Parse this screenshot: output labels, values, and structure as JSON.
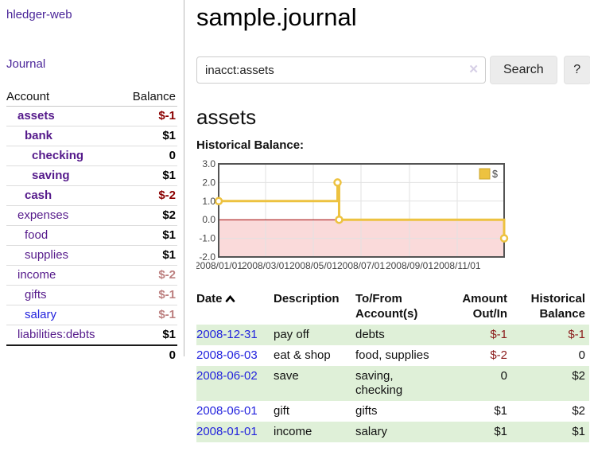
{
  "colors": {
    "accent_purple": "#4a2599",
    "account_link_purple": "#551a8b",
    "link_blue": "#2222dd",
    "negative_strong_red": "#8b0000",
    "negative_table_red": "#8b1a1a",
    "negative_soft_rose": "#bc7f7f",
    "row_stripe_green": "#dff0d8",
    "chart_series_yellow": "#edc240",
    "chart_negative_fill_pink": "#fadada",
    "chart_zero_line_red": "#a00000"
  },
  "sidebar": {
    "brand": "hledger-web",
    "nav": {
      "journal": "Journal"
    },
    "table_headers": [
      "Account",
      "Balance"
    ],
    "accounts": [
      {
        "name": "assets",
        "depth": 1,
        "in_query": true,
        "name_color": "purple",
        "balance": "$-1",
        "balance_color": "strong-neg"
      },
      {
        "name": "bank",
        "depth": 2,
        "in_query": true,
        "name_color": "purple",
        "balance": "$1",
        "balance_color": "normal"
      },
      {
        "name": "checking",
        "depth": 3,
        "in_query": true,
        "name_color": "purple",
        "balance": "0",
        "balance_color": "normal"
      },
      {
        "name": "saving",
        "depth": 3,
        "in_query": true,
        "name_color": "purple",
        "balance": "$1",
        "balance_color": "normal"
      },
      {
        "name": "cash",
        "depth": 2,
        "in_query": true,
        "name_color": "purple",
        "balance": "$-2",
        "balance_color": "strong-neg"
      },
      {
        "name": "expenses",
        "depth": 1,
        "in_query": false,
        "name_color": "purple",
        "balance": "$2",
        "balance_color": "normal"
      },
      {
        "name": "food",
        "depth": 2,
        "in_query": false,
        "name_color": "purple",
        "balance": "$1",
        "balance_color": "normal"
      },
      {
        "name": "supplies",
        "depth": 2,
        "in_query": false,
        "name_color": "purple",
        "balance": "$1",
        "balance_color": "normal"
      },
      {
        "name": "income",
        "depth": 1,
        "in_query": false,
        "name_color": "purple",
        "balance": "$-2",
        "balance_color": "soft-neg"
      },
      {
        "name": "gifts",
        "depth": 2,
        "in_query": false,
        "name_color": "purple",
        "balance": "$-1",
        "balance_color": "soft-neg"
      },
      {
        "name": "salary",
        "depth": 2,
        "in_query": false,
        "name_color": "blue",
        "balance": "$-1",
        "balance_color": "soft-neg"
      },
      {
        "name": "liabilities:debts",
        "depth": 1,
        "in_query": false,
        "name_color": "purple",
        "balance": "$1",
        "balance_color": "normal"
      }
    ],
    "total": "0"
  },
  "header": {
    "title": "sample.journal"
  },
  "search": {
    "value": "inacct:assets",
    "clear_icon": "✕",
    "search_label": "Search",
    "help_label": "?"
  },
  "main": {
    "account_heading": "assets",
    "chart_label": "Historical Balance:"
  },
  "chart_data": {
    "type": "line",
    "step": true,
    "title": "Historical Balance",
    "legend": "$",
    "legend_position": "top-right",
    "points": [
      {
        "date": "2008-01-01",
        "value": 1
      },
      {
        "date": "2008-06-01",
        "value": 2
      },
      {
        "date": "2008-06-03",
        "value": 0
      },
      {
        "date": "2008-12-31",
        "value": -1
      }
    ],
    "x_range": [
      "2008-01-01",
      "2008-12-31"
    ],
    "ylim": [
      -2,
      3
    ],
    "yticks": [
      "3.0",
      "2.0",
      "1.0",
      "0.0",
      "-1.0",
      "-2.0"
    ],
    "xticks": [
      "2008/01/01",
      "2008/03/01",
      "2008/05/01",
      "2008/07/01",
      "2008/09/01",
      "2008/11/01"
    ],
    "grid": true,
    "negative_region_shaded": true
  },
  "register": {
    "headers": [
      "Date",
      "Description",
      "To/From Account(s)",
      "Amount Out/In",
      "Historical Balance"
    ],
    "sort": {
      "column": "Date",
      "direction": "ascending"
    },
    "rows": [
      {
        "date": "2008-12-31",
        "description": "pay off",
        "accounts": "debts",
        "amount": "$-1",
        "amount_neg": true,
        "balance": "$-1",
        "balance_neg": true
      },
      {
        "date": "2008-06-03",
        "description": "eat & shop",
        "accounts": "food, supplies",
        "amount": "$-2",
        "amount_neg": true,
        "balance": "0",
        "balance_neg": false
      },
      {
        "date": "2008-06-02",
        "description": "save",
        "accounts": "saving, checking",
        "amount": "0",
        "amount_neg": false,
        "balance": "$2",
        "balance_neg": false
      },
      {
        "date": "2008-06-01",
        "description": "gift",
        "accounts": "gifts",
        "amount": "$1",
        "amount_neg": false,
        "balance": "$2",
        "balance_neg": false
      },
      {
        "date": "2008-01-01",
        "description": "income",
        "accounts": "salary",
        "amount": "$1",
        "amount_neg": false,
        "balance": "$1",
        "balance_neg": false
      }
    ]
  }
}
